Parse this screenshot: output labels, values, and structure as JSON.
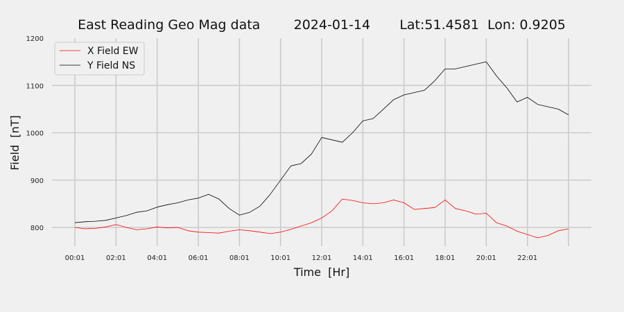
{
  "chart_data": {
    "type": "line",
    "title": "East Reading Geo Mag data        2024-01-14       Lat:51.4581  Lon: 0.9205",
    "xlabel": "Time  [Hr]",
    "ylabel": "Field  [nT]",
    "x_tick_labels": [
      "00:01",
      "02:01",
      "04:01",
      "06:01",
      "08:01",
      "10:01",
      "12:01",
      "14:01",
      "16:01",
      "18:01",
      "20:01",
      "22:01"
    ],
    "y_ticks": [
      800,
      900,
      1000,
      1100,
      1200
    ],
    "xlim": [
      0,
      24
    ],
    "ylim": [
      757,
      1200
    ],
    "grid": true,
    "legend_position": "top-left",
    "x_unit": "hours since 00:01",
    "series": [
      {
        "name": "X Field EW",
        "color": "#ff0000",
        "x": [
          0,
          0.5,
          1,
          1.5,
          2,
          2.5,
          3,
          3.5,
          4,
          4.5,
          5,
          5.5,
          6,
          6.5,
          7,
          7.5,
          8,
          8.5,
          9,
          9.5,
          10,
          10.5,
          11,
          11.5,
          12,
          12.5,
          13,
          13.5,
          14,
          14.5,
          15,
          15.5,
          16,
          16.5,
          17,
          17.5,
          18,
          18.5,
          19,
          19.5,
          20,
          20.5,
          21,
          21.5,
          22,
          22.5,
          23,
          23.5,
          24
        ],
        "values": [
          800,
          797,
          798,
          801,
          806,
          800,
          795,
          797,
          801,
          799,
          800,
          793,
          790,
          789,
          788,
          792,
          795,
          793,
          790,
          787,
          790,
          796,
          803,
          810,
          820,
          835,
          860,
          857,
          852,
          850,
          852,
          858,
          852,
          838,
          840,
          842,
          858,
          840,
          835,
          828,
          830,
          810,
          803,
          792,
          785,
          778,
          783,
          793,
          797
        ]
      },
      {
        "name": "Y Field NS",
        "color": "#000000",
        "x": [
          0,
          0.5,
          1,
          1.5,
          2,
          2.5,
          3,
          3.5,
          4,
          4.5,
          5,
          5.5,
          6,
          6.5,
          7,
          7.5,
          8,
          8.5,
          9,
          9.5,
          10,
          10.5,
          11,
          11.5,
          12,
          12.5,
          13,
          13.5,
          14,
          14.5,
          15,
          15.5,
          16,
          16.5,
          17,
          17.5,
          18,
          18.5,
          19,
          19.5,
          20,
          20.5,
          21,
          21.5,
          22,
          22.5,
          23,
          23.5,
          24
        ],
        "values": [
          810,
          812,
          813,
          815,
          820,
          825,
          832,
          835,
          843,
          848,
          852,
          858,
          862,
          870,
          860,
          840,
          826,
          832,
          845,
          870,
          900,
          930,
          935,
          955,
          990,
          985,
          980,
          1000,
          1025,
          1030,
          1050,
          1070,
          1080,
          1085,
          1090,
          1110,
          1135,
          1135,
          1140,
          1145,
          1150,
          1120,
          1095,
          1065,
          1075,
          1060,
          1055,
          1050,
          1038
        ]
      }
    ]
  }
}
